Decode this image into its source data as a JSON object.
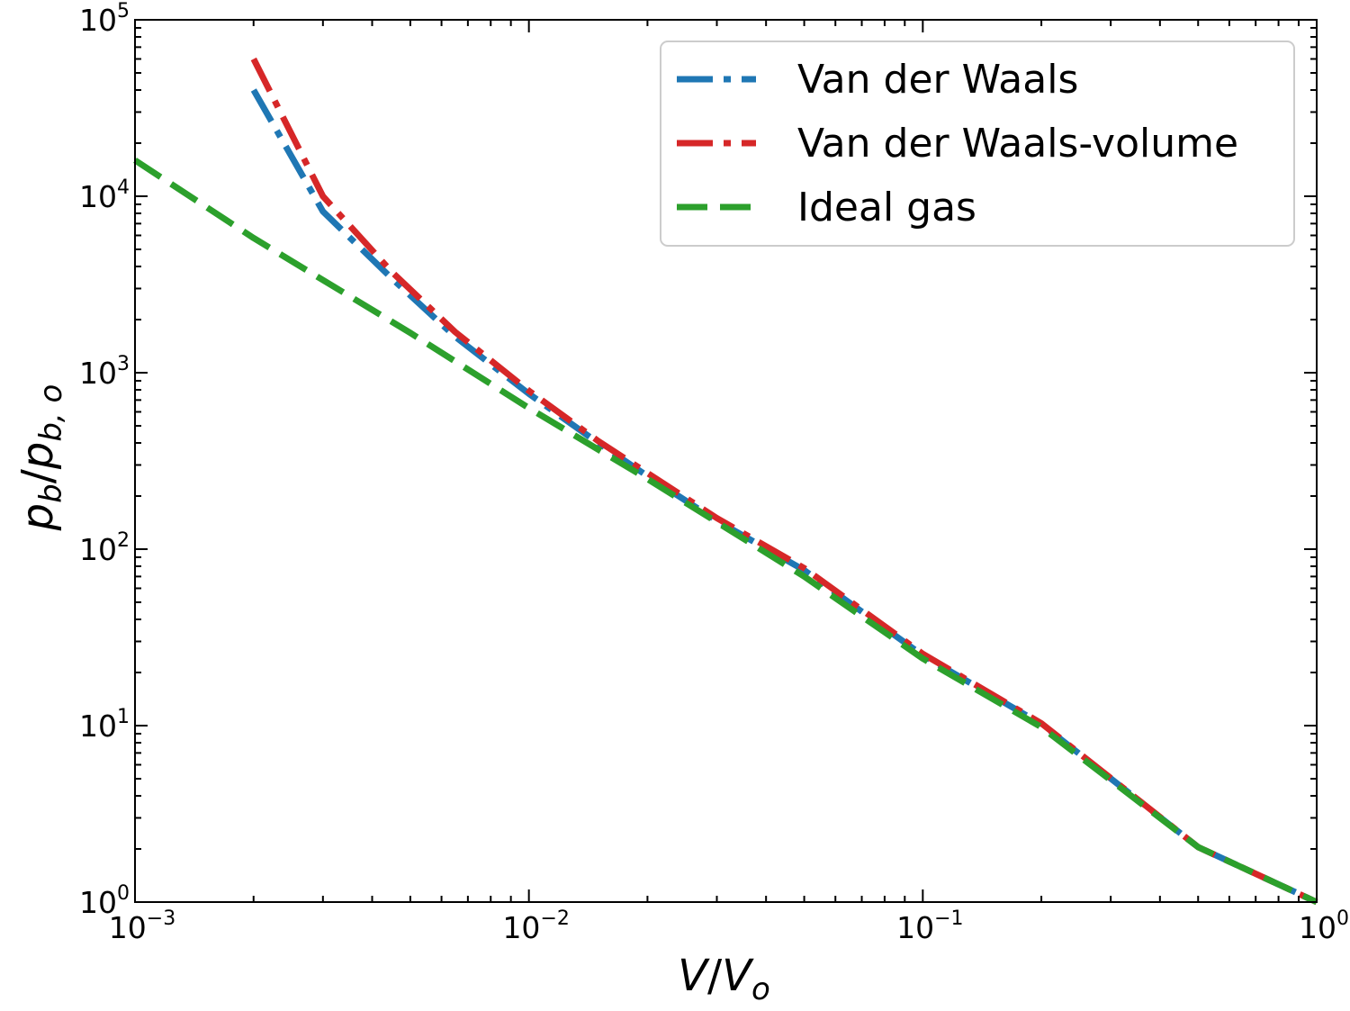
{
  "chart_data": {
    "type": "line",
    "x_scale": "log",
    "y_scale": "log",
    "xlim": [
      0.001,
      1
    ],
    "ylim": [
      1,
      100000
    ],
    "xlabel": {
      "base": "V",
      "slash": "/",
      "denominator": "V",
      "denominator_subscript": "o"
    },
    "ylabel": {
      "base": "p",
      "base_subscript": "b",
      "slash": "/",
      "denominator": "p",
      "denominator_subscript": "b, o"
    },
    "x_ticks": [
      {
        "value": 0.001,
        "base": "10",
        "exp": "−3"
      },
      {
        "value": 0.01,
        "base": "10",
        "exp": "−2"
      },
      {
        "value": 0.1,
        "base": "10",
        "exp": "−1"
      },
      {
        "value": 1,
        "base": "10",
        "exp": "0"
      }
    ],
    "y_ticks": [
      {
        "value": 1,
        "base": "10",
        "exp": "0"
      },
      {
        "value": 10,
        "base": "10",
        "exp": "1"
      },
      {
        "value": 100,
        "base": "10",
        "exp": "2"
      },
      {
        "value": 1000,
        "base": "10",
        "exp": "3"
      },
      {
        "value": 10000,
        "base": "10",
        "exp": "4"
      },
      {
        "value": 100000,
        "base": "10",
        "exp": "5"
      }
    ],
    "grid": false,
    "legend_position": "top-right",
    "series": [
      {
        "name": "Van der Waals",
        "color": "#1f77b4",
        "style": "dashdot",
        "x": [
          0.002,
          0.003,
          0.0045,
          0.0065,
          0.01,
          0.015,
          0.02,
          0.03,
          0.05,
          0.1,
          0.2,
          0.5,
          1
        ],
        "y": [
          40000,
          8200,
          3400,
          1600,
          760,
          400,
          260,
          145,
          76,
          25,
          10.2,
          2.05,
          1
        ]
      },
      {
        "name": "Van der Waals-volume",
        "color": "#d62728",
        "style": "dashdot",
        "x": [
          0.002,
          0.003,
          0.0045,
          0.0065,
          0.01,
          0.015,
          0.02,
          0.03,
          0.05,
          0.1,
          0.2,
          0.5,
          1
        ],
        "y": [
          60000,
          10000,
          3700,
          1700,
          790,
          410,
          270,
          150,
          78,
          25.5,
          10.3,
          2.05,
          1
        ]
      },
      {
        "name": "Ideal gas",
        "color": "#2ca02c",
        "style": "dashed",
        "x": [
          0.001,
          0.002,
          0.005,
          0.01,
          0.02,
          0.05,
          0.1,
          0.2,
          0.5,
          1
        ],
        "y": [
          16000,
          5800,
          1680,
          630,
          250,
          70,
          24,
          9.8,
          2.05,
          1
        ]
      }
    ]
  }
}
